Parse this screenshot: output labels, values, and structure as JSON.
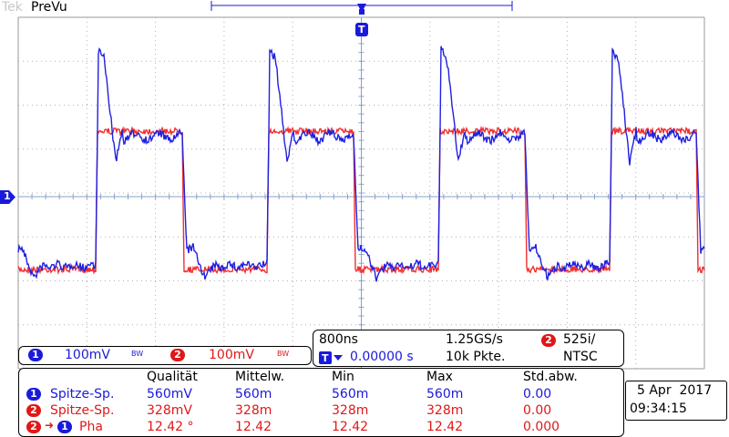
{
  "header": {
    "title": "PreVu",
    "brand": "Tek"
  },
  "markers": {
    "trigger_pos": "T",
    "ch1_ref": "1"
  },
  "channels": {
    "ch1": {
      "num": "1",
      "scale": "100mV",
      "bw": "BW",
      "color": "#1a1adc"
    },
    "ch2": {
      "num": "2",
      "scale": "100mV",
      "bw": "BW",
      "color": "#e01818"
    }
  },
  "timebase": {
    "scale": "800ns",
    "rate": "1.25GS/s",
    "delay": "0.00000 s",
    "record": "10k Pkte.",
    "trig_ch": "2",
    "trig_mode": "525i/",
    "trig_std": "NTSC"
  },
  "measurements": {
    "columns": [
      "Qualität",
      "Mittelw.",
      "Min",
      "Max",
      "Std.abw."
    ],
    "rows": [
      {
        "src": "1",
        "src2": "",
        "label": "Spitze-Sp.",
        "color": "#1a1adc",
        "values": [
          "560mV",
          "560m",
          "560m",
          "560m",
          "0.00"
        ]
      },
      {
        "src": "2",
        "src2": "",
        "label": "Spitze-Sp.",
        "color": "#e01818",
        "values": [
          "328mV",
          "328m",
          "328m",
          "328m",
          "0.00"
        ]
      },
      {
        "src": "2",
        "src2": "1",
        "label": "Pha",
        "color": "#e01818",
        "values": [
          "12.42 °",
          "12.42",
          "12.42",
          "12.42",
          "0.000"
        ]
      }
    ]
  },
  "datetime": {
    "date": "5 Apr  2017",
    "time": "09:34:15"
  }
}
